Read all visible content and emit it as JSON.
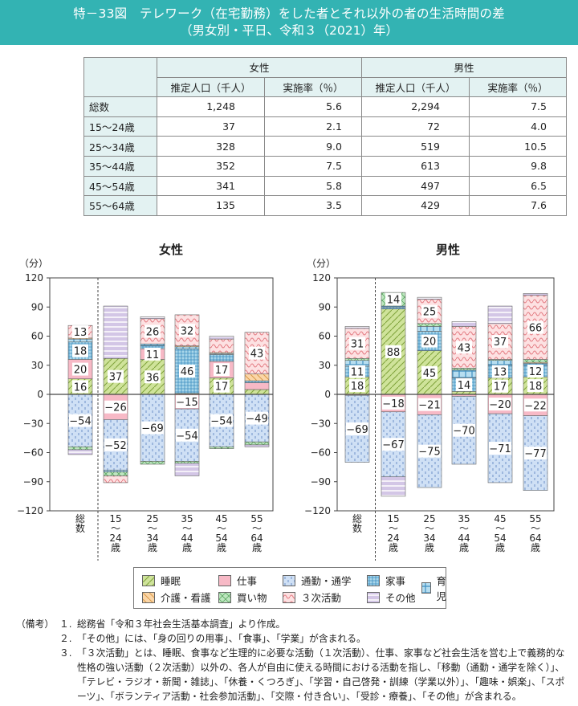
{
  "header": {
    "title_line1": "特－33図　テレワーク（在宅勤務）をした者とそれ以外の者の生活時間の差",
    "title_line2": "（男女別・平日、令和３（2021）年）"
  },
  "table": {
    "groups": [
      "女性",
      "男性"
    ],
    "subheaders": [
      "推定人口（千人）",
      "実施率（％）",
      "推定人口（千人）",
      "実施率（％）"
    ],
    "rows": [
      {
        "label": "総数",
        "f_pop": "1,248",
        "f_rate": "5.6",
        "m_pop": "2,294",
        "m_rate": "7.5"
      },
      {
        "label": "15～24歳",
        "f_pop": "37",
        "f_rate": "2.1",
        "m_pop": "72",
        "m_rate": "4.0"
      },
      {
        "label": "25～34歳",
        "f_pop": "328",
        "f_rate": "9.0",
        "m_pop": "519",
        "m_rate": "10.5"
      },
      {
        "label": "35～44歳",
        "f_pop": "352",
        "f_rate": "7.5",
        "m_pop": "613",
        "m_rate": "9.8"
      },
      {
        "label": "45～54歳",
        "f_pop": "341",
        "f_rate": "5.8",
        "m_pop": "497",
        "m_rate": "6.5"
      },
      {
        "label": "55～64歳",
        "f_pop": "135",
        "f_rate": "3.5",
        "m_pop": "429",
        "m_rate": "7.6"
      }
    ]
  },
  "colors": {
    "sleep": "#cfe39a",
    "work": "#f7b9c6",
    "commute": "#cfe0f5",
    "housework": "#a9d6ea",
    "childcare": "#b7def0",
    "care": "#fbd6a7",
    "shopping": "#bde6bf",
    "tertiary": "#fde1e2",
    "other": "#d3c6e6",
    "title_bg": "#33b3b3",
    "table_header_bg": "#e3f2f2"
  },
  "legend": [
    {
      "key": "sleep",
      "label": "睡眠"
    },
    {
      "key": "work",
      "label": "仕事"
    },
    {
      "key": "commute",
      "label": "通勤・通学"
    },
    {
      "key": "housework",
      "label": "家事"
    },
    {
      "key": "childcare",
      "label": "育児"
    },
    {
      "key": "care",
      "label": "介護・看護"
    },
    {
      "key": "shopping",
      "label": "買い物"
    },
    {
      "key": "tertiary",
      "label": "３次活動"
    },
    {
      "key": "other",
      "label": "その他"
    }
  ],
  "chart_data": [
    {
      "type": "bar",
      "stacked": true,
      "title": "女性",
      "ylabel": "（分）",
      "ylim": [
        -120,
        120
      ],
      "yticks": [
        120,
        90,
        60,
        30,
        0,
        -30,
        -60,
        -90,
        -120
      ],
      "categories": [
        "総数",
        "15～24歳",
        "25～34歳",
        "35～44歳",
        "45～54歳",
        "55～64歳"
      ],
      "category_labels": [
        "総\n数",
        "15\n～\n24\n歳",
        "25\n～\n34\n歳",
        "35\n～\n44\n歳",
        "45\n～\n54\n歳",
        "55\n～\n64\n歳"
      ],
      "series": [
        {
          "key": "sleep",
          "name": "睡眠",
          "values": [
            16,
            37,
            36,
            1,
            17,
            5
          ]
        },
        {
          "key": "work",
          "name": "仕事",
          "values": [
            20,
            -26,
            11,
            -15,
            17,
            7
          ]
        },
        {
          "key": "commute",
          "name": "通勤・通学",
          "values": [
            -54,
            -52,
            -69,
            -54,
            -54,
            -49
          ]
        },
        {
          "key": "housework",
          "name": "家事",
          "values": [
            18,
            -2,
            3,
            46,
            7,
            2
          ]
        },
        {
          "key": "childcare",
          "name": "育児",
          "values": [
            3,
            0,
            2,
            2,
            1,
            0
          ]
        },
        {
          "key": "care",
          "name": "介護・看護",
          "values": [
            1,
            0,
            0,
            1,
            1,
            7
          ]
        },
        {
          "key": "shopping",
          "name": "買い物",
          "values": [
            -3,
            -4,
            -3,
            -2,
            -2,
            -3
          ]
        },
        {
          "key": "tertiary",
          "name": "３次活動",
          "values": [
            13,
            -7,
            26,
            32,
            14,
            43
          ]
        },
        {
          "key": "other",
          "name": "その他",
          "values": [
            -5,
            54,
            2,
            -13,
            3,
            -2
          ]
        }
      ],
      "data_labels": [
        {
          "cat": 0,
          "series": "sleep",
          "text": "16"
        },
        {
          "cat": 0,
          "series": "work",
          "text": "20"
        },
        {
          "cat": 0,
          "series": "housework",
          "text": "18"
        },
        {
          "cat": 0,
          "series": "tertiary",
          "text": "13"
        },
        {
          "cat": 0,
          "series": "commute",
          "text": "−54"
        },
        {
          "cat": 1,
          "series": "sleep",
          "text": "37"
        },
        {
          "cat": 1,
          "series": "work",
          "text": "−26"
        },
        {
          "cat": 1,
          "series": "commute",
          "text": "−52"
        },
        {
          "cat": 2,
          "series": "sleep",
          "text": "36"
        },
        {
          "cat": 2,
          "series": "work",
          "text": "11"
        },
        {
          "cat": 2,
          "series": "tertiary",
          "text": "26"
        },
        {
          "cat": 2,
          "series": "commute",
          "text": "−69"
        },
        {
          "cat": 3,
          "series": "housework",
          "text": "46"
        },
        {
          "cat": 3,
          "series": "tertiary",
          "text": "32"
        },
        {
          "cat": 3,
          "series": "work",
          "text": "−15"
        },
        {
          "cat": 3,
          "series": "commute",
          "text": "−54"
        },
        {
          "cat": 4,
          "series": "sleep",
          "text": "17"
        },
        {
          "cat": 4,
          "series": "work",
          "text": "17"
        },
        {
          "cat": 4,
          "series": "commute",
          "text": "−54"
        },
        {
          "cat": 5,
          "series": "tertiary",
          "text": "43"
        },
        {
          "cat": 5,
          "series": "commute",
          "text": "−49"
        }
      ]
    },
    {
      "type": "bar",
      "stacked": true,
      "title": "男性",
      "ylabel": "（分）",
      "ylim": [
        -120,
        120
      ],
      "yticks": [
        120,
        90,
        60,
        30,
        0,
        -30,
        -60,
        -90,
        -120
      ],
      "categories": [
        "総数",
        "15～24歳",
        "25～34歳",
        "35～44歳",
        "45～54歳",
        "55～64歳"
      ],
      "category_labels": [
        "総\n数",
        "15\n～\n24\n歳",
        "25\n～\n34\n歳",
        "35\n～\n44\n歳",
        "45\n～\n54\n歳",
        "55\n～\n64\n歳"
      ],
      "series": [
        {
          "key": "sleep",
          "name": "睡眠",
          "values": [
            18,
            88,
            45,
            3,
            17,
            18
          ]
        },
        {
          "key": "work",
          "name": "仕事",
          "values": [
            -1,
            -18,
            -21,
            -2,
            -20,
            -22
          ]
        },
        {
          "key": "commute",
          "name": "通勤・通学",
          "values": [
            -69,
            -67,
            -75,
            -70,
            -71,
            -77
          ]
        },
        {
          "key": "housework",
          "name": "家事",
          "values": [
            11,
            2,
            20,
            14,
            13,
            12
          ]
        },
        {
          "key": "childcare",
          "name": "育児",
          "values": [
            6,
            1,
            5,
            8,
            5,
            2
          ]
        },
        {
          "key": "care",
          "name": "介護・看護",
          "values": [
            0,
            0,
            0,
            0,
            0,
            1
          ]
        },
        {
          "key": "shopping",
          "name": "買い物",
          "values": [
            2,
            14,
            3,
            2,
            1,
            3
          ]
        },
        {
          "key": "tertiary",
          "name": "３次活動",
          "values": [
            31,
            0,
            25,
            43,
            37,
            66
          ]
        },
        {
          "key": "other",
          "name": "その他",
          "values": [
            2,
            -20,
            2,
            5,
            18,
            2
          ]
        }
      ],
      "data_labels": [
        {
          "cat": 0,
          "series": "sleep",
          "text": "18"
        },
        {
          "cat": 0,
          "series": "housework",
          "text": "11"
        },
        {
          "cat": 0,
          "series": "tertiary",
          "text": "31"
        },
        {
          "cat": 0,
          "series": "commute",
          "text": "−69"
        },
        {
          "cat": 1,
          "series": "sleep",
          "text": "88"
        },
        {
          "cat": 1,
          "series": "shopping",
          "text": "14"
        },
        {
          "cat": 1,
          "series": "work",
          "text": "−18"
        },
        {
          "cat": 1,
          "series": "commute",
          "text": "−67"
        },
        {
          "cat": 2,
          "series": "sleep",
          "text": "45"
        },
        {
          "cat": 2,
          "series": "housework",
          "text": "20"
        },
        {
          "cat": 2,
          "series": "tertiary",
          "text": "25"
        },
        {
          "cat": 2,
          "series": "work",
          "text": "−21"
        },
        {
          "cat": 2,
          "series": "commute",
          "text": "−75"
        },
        {
          "cat": 3,
          "series": "housework",
          "text": "14"
        },
        {
          "cat": 3,
          "series": "tertiary",
          "text": "43"
        },
        {
          "cat": 3,
          "series": "commute",
          "text": "−70"
        },
        {
          "cat": 4,
          "series": "sleep",
          "text": "17"
        },
        {
          "cat": 4,
          "series": "housework",
          "text": "13"
        },
        {
          "cat": 4,
          "series": "tertiary",
          "text": "37"
        },
        {
          "cat": 4,
          "series": "work",
          "text": "−20"
        },
        {
          "cat": 4,
          "series": "commute",
          "text": "−71"
        },
        {
          "cat": 5,
          "series": "sleep",
          "text": "18"
        },
        {
          "cat": 5,
          "series": "housework",
          "text": "12"
        },
        {
          "cat": 5,
          "series": "tertiary",
          "text": "66"
        },
        {
          "cat": 5,
          "series": "work",
          "text": "−22"
        },
        {
          "cat": 5,
          "series": "commute",
          "text": "−77"
        }
      ]
    }
  ],
  "notes": {
    "prefix": "（備考）",
    "items": [
      {
        "num": "１.",
        "text": "総務省「令和３年社会生活基本調査」より作成。"
      },
      {
        "num": "２.",
        "text": "「その他」には、「身の回りの用事」、「食事」、「学業」が含まれる。"
      },
      {
        "num": "３.",
        "text": "「３次活動」とは、睡眠、食事など生理的に必要な活動（１次活動）、仕事、家事など社会生活を営む上で義務的な性格の強い活動（２次活動）以外の、各人が自由に使える時間における活動を指し、「移動（通勤・通学を除く）」、「テレビ・ラジオ・新聞・雑誌」、「休養・くつろぎ」、「学習・自己啓発・訓練（学業以外）」、「趣味・娯楽」、「スポーツ」、「ボランティア活動・社会参加活動」、「交際・付き合い」、「受診・療養」、「その他」が含まれる。"
      }
    ]
  }
}
